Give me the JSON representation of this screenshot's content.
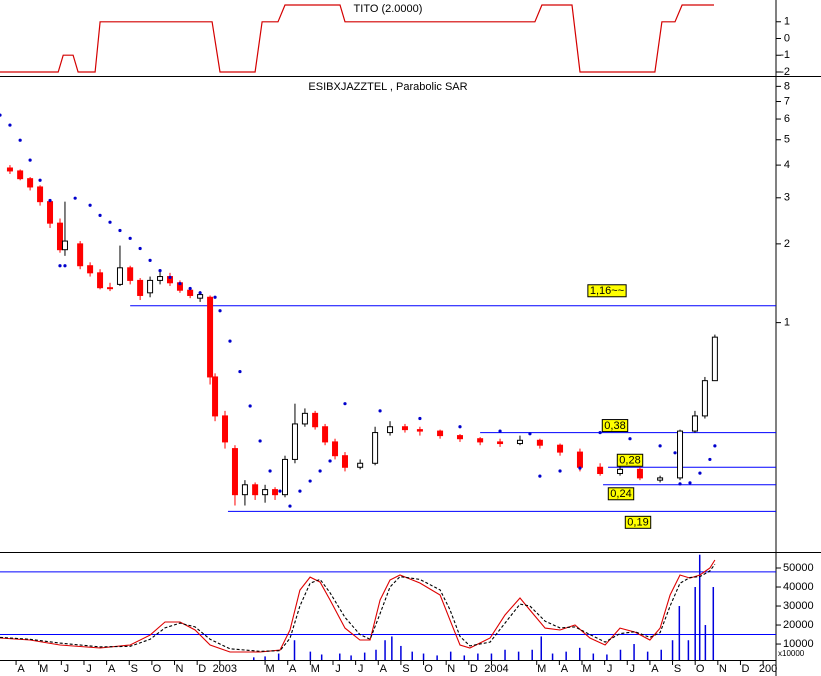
{
  "chart_data": [
    {
      "type": "line",
      "title": "TITO (2.0000)",
      "x": [
        -0.71,
        1.86,
        2.08,
        2.52,
        2.74,
        3.49,
        3.71,
        8.66,
        9.01,
        10.56,
        10.87,
        11.57,
        11.88,
        14.31,
        14.53,
        22.92,
        23.23,
        24.56,
        24.91,
        28.22,
        28.53,
        29.11,
        29.42,
        30.83
      ],
      "series": [
        {
          "color": "#d40000",
          "values": [
            -2,
            -2,
            -1,
            -1,
            -2,
            -2,
            1,
            1,
            -2,
            -2,
            1,
            1,
            2,
            2,
            1,
            1,
            2,
            2,
            -2,
            -2,
            1,
            1,
            2,
            2
          ]
        }
      ],
      "xlim": [
        -0.71,
        33.57
      ],
      "ylim": [
        -2.18,
        2.3
      ],
      "yticks": [
        1,
        0,
        -1,
        -2
      ]
    },
    {
      "type": "candlestick",
      "title": "ESIBXJAZZTEL , Parabolic SAR",
      "log": true,
      "x": [
        -0.27,
        0.18,
        0.62,
        1.06,
        1.5,
        1.94,
        2.16,
        2.83,
        3.27,
        3.71,
        4.15,
        4.59,
        5.04,
        5.48,
        5.92,
        6.36,
        6.8,
        7.24,
        7.69,
        8.13,
        8.57,
        8.79,
        9.23,
        9.67,
        10.11,
        10.56,
        11.0,
        11.44,
        11.88,
        12.32,
        12.76,
        13.21,
        13.65,
        14.09,
        14.53,
        15.2,
        15.86,
        16.52,
        17.18,
        17.84,
        18.73,
        19.61,
        20.5,
        21.38,
        22.26,
        23.14,
        24.03,
        24.91,
        25.8,
        26.68,
        27.56,
        28.45,
        29.33,
        29.99,
        30.43,
        30.87
      ],
      "open": [
        3.9,
        3.8,
        3.55,
        3.3,
        2.9,
        2.4,
        1.9,
        2.0,
        1.65,
        1.55,
        1.36,
        1.4,
        1.62,
        1.45,
        1.3,
        1.45,
        1.5,
        1.42,
        1.33,
        1.24,
        1.25,
        0.62,
        0.44,
        0.33,
        0.22,
        0.24,
        0.22,
        0.23,
        0.22,
        0.3,
        0.41,
        0.45,
        0.4,
        0.35,
        0.31,
        0.28,
        0.29,
        0.38,
        0.4,
        0.39,
        0.385,
        0.37,
        0.36,
        0.35,
        0.345,
        0.355,
        0.34,
        0.32,
        0.28,
        0.265,
        0.275,
        0.25,
        0.255,
        0.385,
        0.44,
        0.6
      ],
      "high": [
        4.0,
        3.85,
        3.6,
        3.35,
        2.95,
        2.5,
        2.9,
        2.05,
        1.7,
        1.6,
        1.42,
        1.97,
        1.65,
        1.48,
        1.5,
        1.58,
        1.55,
        1.45,
        1.36,
        1.32,
        1.27,
        0.64,
        0.46,
        0.34,
        0.25,
        0.245,
        0.24,
        0.235,
        0.31,
        0.49,
        0.47,
        0.46,
        0.41,
        0.36,
        0.32,
        0.3,
        0.4,
        0.42,
        0.41,
        0.4,
        0.39,
        0.375,
        0.365,
        0.36,
        0.37,
        0.36,
        0.345,
        0.33,
        0.29,
        0.285,
        0.28,
        0.26,
        0.39,
        0.46,
        0.62,
        0.9
      ],
      "low": [
        3.7,
        3.5,
        3.2,
        2.8,
        2.3,
        1.85,
        1.8,
        1.6,
        1.5,
        1.34,
        1.32,
        1.38,
        1.4,
        1.22,
        1.25,
        1.4,
        1.38,
        1.3,
        1.24,
        1.2,
        0.58,
        0.42,
        0.33,
        0.2,
        0.2,
        0.21,
        0.205,
        0.21,
        0.215,
        0.29,
        0.4,
        0.39,
        0.34,
        0.3,
        0.27,
        0.275,
        0.285,
        0.37,
        0.38,
        0.37,
        0.36,
        0.35,
        0.34,
        0.335,
        0.34,
        0.33,
        0.31,
        0.27,
        0.26,
        0.26,
        0.25,
        0.245,
        0.25,
        0.38,
        0.43,
        0.6
      ],
      "close": [
        3.8,
        3.55,
        3.3,
        2.9,
        2.4,
        1.9,
        2.05,
        1.65,
        1.55,
        1.36,
        1.35,
        1.62,
        1.45,
        1.27,
        1.45,
        1.5,
        1.42,
        1.33,
        1.27,
        1.28,
        0.62,
        0.44,
        0.35,
        0.22,
        0.24,
        0.22,
        0.23,
        0.22,
        0.3,
        0.41,
        0.45,
        0.4,
        0.35,
        0.31,
        0.28,
        0.29,
        0.38,
        0.4,
        0.39,
        0.385,
        0.37,
        0.36,
        0.35,
        0.345,
        0.355,
        0.34,
        0.32,
        0.28,
        0.265,
        0.275,
        0.255,
        0.255,
        0.385,
        0.44,
        0.6,
        0.88
      ],
      "up_color": "#ffffff",
      "down_color": "#ff0000",
      "sar": {
        "color": "#0000cc",
        "x": [
          -0.71,
          -0.27,
          0.18,
          0.62,
          1.06,
          1.5,
          1.94,
          2.16,
          2.61,
          3.27,
          3.71,
          4.15,
          4.59,
          5.04,
          5.48,
          5.92,
          6.36,
          6.8,
          7.24,
          7.69,
          8.13,
          8.79,
          9.01,
          9.45,
          9.89,
          10.34,
          10.78,
          11.22,
          11.66,
          12.1,
          12.54,
          12.99,
          13.43,
          13.87,
          14.53,
          16.08,
          17.84,
          19.61,
          21.38,
          22.7,
          23.14,
          24.03,
          24.91,
          25.8,
          27.12,
          28.45,
          29.11,
          29.33,
          29.77,
          30.21,
          30.65,
          30.87
        ],
        "values": [
          6.21,
          5.69,
          4.98,
          4.18,
          3.5,
          2.93,
          1.65,
          1.65,
          2.99,
          2.81,
          2.57,
          2.42,
          2.25,
          2.1,
          1.92,
          1.73,
          1.58,
          1.49,
          1.41,
          1.35,
          1.3,
          1.25,
          1.11,
          0.85,
          0.65,
          0.48,
          0.353,
          0.271,
          0.227,
          0.199,
          0.227,
          0.248,
          0.271,
          0.296,
          0.49,
          0.46,
          0.43,
          0.4,
          0.385,
          0.376,
          0.259,
          0.271,
          0.278,
          0.38,
          0.36,
          0.338,
          0.318,
          0.242,
          0.244,
          0.266,
          0.3,
          0.338
        ]
      },
      "levels": [
        {
          "value": 1.16,
          "label": "1,16~~",
          "start": 5.04
        },
        {
          "value": 0.38,
          "label": "0,38",
          "start": 20.5
        },
        {
          "value": 0.28,
          "label": "0,28",
          "start": 26.15
        },
        {
          "value": 0.24,
          "label": "0,24",
          "start": 25.93
        },
        {
          "value": 0.19,
          "label": "0,19",
          "start": 9.36
        }
      ],
      "level_color": "#0000ff",
      "label_color": "#ffff00",
      "xlim": [
        -0.71,
        33.57
      ],
      "ylim": [
        0.134,
        8.61
      ],
      "yticks": [
        8,
        7,
        6,
        5,
        4,
        3,
        2,
        1
      ]
    },
    {
      "type": "bar",
      "annotation": "x10000",
      "color": "#0000dd",
      "x": [
        10.5,
        11.0,
        11.6,
        12.3,
        13.0,
        13.5,
        14.3,
        14.8,
        15.4,
        15.9,
        16.3,
        16.6,
        17.0,
        17.5,
        18.0,
        18.6,
        19.2,
        19.8,
        20.4,
        21.0,
        21.6,
        22.2,
        22.8,
        23.2,
        23.7,
        24.3,
        24.9,
        25.5,
        26.1,
        26.7,
        27.3,
        27.9,
        28.5,
        29.0,
        29.3,
        29.7,
        30.0,
        30.2,
        30.45,
        30.8
      ],
      "values": [
        3000,
        3500,
        5000,
        12000,
        6000,
        4500,
        5000,
        4000,
        5500,
        7000,
        12000,
        14000,
        9000,
        6000,
        5000,
        4000,
        6000,
        4000,
        5000,
        5000,
        7000,
        6000,
        7000,
        14000,
        5000,
        6000,
        8000,
        5000,
        4500,
        7000,
        10000,
        6000,
        7000,
        12000,
        30000,
        12000,
        40000,
        57000,
        20000,
        40000
      ],
      "lines": [
        {
          "color": "#dd0000",
          "dash": false,
          "x": [
            -0.71,
            0.62,
            1.94,
            3.71,
            5.04,
            5.92,
            6.58,
            7.24,
            7.91,
            8.57,
            9.45,
            10.78,
            11.66,
            12.1,
            12.54,
            12.99,
            13.43,
            13.87,
            14.53,
            15.19,
            15.64,
            16.08,
            16.52,
            16.96,
            17.84,
            18.73,
            19.17,
            19.61,
            20.05,
            20.94,
            21.6,
            22.26,
            22.7,
            23.37,
            24.03,
            24.69,
            25.35,
            26.02,
            26.68,
            27.34,
            28.0,
            28.45,
            28.89,
            29.33,
            29.77,
            30.21,
            30.65,
            30.87
          ],
          "values": [
            13200,
            12100,
            9500,
            7900,
            9500,
            14700,
            21600,
            21600,
            17400,
            9500,
            5800,
            5800,
            6800,
            17400,
            38400,
            45200,
            42600,
            33200,
            18400,
            12100,
            12100,
            33200,
            43700,
            46300,
            42100,
            35800,
            22600,
            9500,
            7900,
            13200,
            25300,
            34200,
            27900,
            18400,
            17400,
            20000,
            13200,
            9500,
            18400,
            16300,
            12100,
            18400,
            35800,
            46300,
            44700,
            46300,
            50000,
            54200
          ]
        },
        {
          "color": "#000000",
          "dash": true,
          "x": [
            -0.71,
            0.62,
            1.94,
            3.71,
            5.04,
            5.92,
            6.58,
            7.24,
            7.91,
            8.57,
            9.45,
            10.78,
            11.66,
            12.1,
            12.54,
            12.99,
            13.43,
            13.87,
            14.53,
            15.19,
            15.64,
            16.08,
            16.52,
            16.96,
            17.84,
            18.73,
            19.17,
            19.61,
            20.05,
            20.94,
            21.6,
            22.26,
            22.7,
            23.37,
            24.03,
            24.69,
            25.35,
            26.02,
            26.68,
            27.34,
            28.0,
            28.45,
            28.89,
            29.33,
            29.77,
            30.21,
            30.65,
            30.87
          ],
          "values": [
            13500,
            12500,
            10500,
            8500,
            8800,
            12500,
            18500,
            21000,
            19000,
            12500,
            7500,
            6200,
            6500,
            13000,
            30000,
            42000,
            44000,
            37000,
            24000,
            15000,
            12500,
            26000,
            40000,
            45500,
            44000,
            38500,
            28000,
            14000,
            9000,
            11000,
            21000,
            31000,
            30000,
            22000,
            18500,
            19000,
            15000,
            11000,
            15500,
            16500,
            13500,
            16000,
            30000,
            42000,
            45000,
            45500,
            48500,
            52000
          ]
        }
      ],
      "levels": [
        {
          "value": 48000
        },
        {
          "value": 15000
        }
      ],
      "level_color": "#0000ff",
      "xlim": [
        -0.71,
        33.57
      ],
      "ylim": [
        1600,
        57900
      ],
      "yticks": [
        50000,
        40000,
        30000,
        20000,
        10000
      ],
      "xticks": [
        {
          "value": 0,
          "label": "A"
        },
        {
          "value": 1,
          "label": "M"
        },
        {
          "value": 2,
          "label": "J"
        },
        {
          "value": 3,
          "label": "J"
        },
        {
          "value": 4,
          "label": "A"
        },
        {
          "value": 5,
          "label": "S"
        },
        {
          "value": 6,
          "label": "O"
        },
        {
          "value": 7,
          "label": "N"
        },
        {
          "value": 8,
          "label": "D"
        },
        {
          "value": 9,
          "label": "2003"
        },
        {
          "value": 11,
          "label": "M"
        },
        {
          "value": 12,
          "label": "A"
        },
        {
          "value": 13,
          "label": "M"
        },
        {
          "value": 14,
          "label": "J"
        },
        {
          "value": 15,
          "label": "J"
        },
        {
          "value": 16,
          "label": "A"
        },
        {
          "value": 17,
          "label": "S"
        },
        {
          "value": 18,
          "label": "O"
        },
        {
          "value": 19,
          "label": "N"
        },
        {
          "value": 20,
          "label": "D"
        },
        {
          "value": 21,
          "label": "2004"
        },
        {
          "value": 23,
          "label": "M"
        },
        {
          "value": 24,
          "label": "A"
        },
        {
          "value": 25,
          "label": "M"
        },
        {
          "value": 26,
          "label": "J"
        },
        {
          "value": 27,
          "label": "J"
        },
        {
          "value": 28,
          "label": "A"
        },
        {
          "value": 29,
          "label": "S"
        },
        {
          "value": 30,
          "label": "O"
        },
        {
          "value": 31,
          "label": "N"
        },
        {
          "value": 32,
          "label": "D"
        },
        {
          "value": 33,
          "label": "200"
        }
      ]
    }
  ]
}
